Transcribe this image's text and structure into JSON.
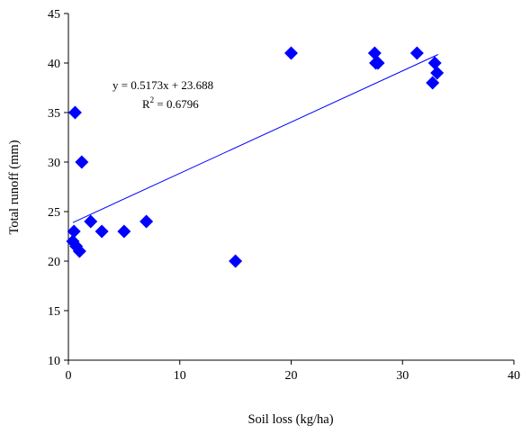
{
  "chart_data": {
    "type": "scatter",
    "title": "",
    "xlabel": "Soil loss (kg/ha)",
    "ylabel": "Total runoff (mm)",
    "xlim": [
      0,
      40
    ],
    "ylim": [
      10,
      45
    ],
    "xticks": [
      "0",
      "10",
      "20",
      "30",
      "40"
    ],
    "yticks": [
      "10",
      "15",
      "20",
      "25",
      "30",
      "35",
      "40",
      "45"
    ],
    "grid": false,
    "legend": "none",
    "marker": "diamond",
    "colors": {
      "points": "#0000ff",
      "trendline": "#0000ff",
      "axis": "#000000"
    },
    "series": [
      {
        "x": [
          0.5,
          0.6,
          1.0,
          1.2,
          2.0,
          3.0,
          5.0,
          7.0,
          15.0,
          20.0,
          27.5,
          27.6,
          27.8,
          31.3,
          32.7,
          32.9,
          33.1,
          0.4,
          0.7
        ],
        "y": [
          23.0,
          35.0,
          21.0,
          30.0,
          24.0,
          23.0,
          23.0,
          24.0,
          20.0,
          41.0,
          41.0,
          40.0,
          40.0,
          41.0,
          38.0,
          40.0,
          39.0,
          22.0,
          21.5
        ]
      }
    ],
    "trendline": {
      "type": "linear",
      "slope": 0.5173,
      "intercept": 23.688,
      "x_range": [
        0.4,
        33.2
      ],
      "equation_text": "y = 0.5173x + 23.688",
      "r2_prefix": "R",
      "r2_sup": "2",
      "r2_value": " = 0.6796"
    }
  }
}
